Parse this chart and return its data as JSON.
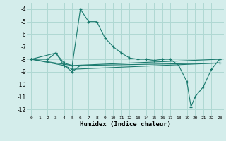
{
  "line1_x": [
    0,
    2,
    3,
    4,
    5,
    6,
    7,
    8,
    9,
    10,
    11,
    12,
    13,
    14,
    15,
    16,
    17,
    18,
    19,
    19.5,
    20,
    21,
    22,
    23
  ],
  "line1_y": [
    -8,
    -8,
    -7.5,
    -8.3,
    -8.5,
    -4.0,
    -5.0,
    -5.0,
    -6.3,
    -7.0,
    -7.5,
    -7.9,
    -8.0,
    -8.0,
    -8.1,
    -8.0,
    -8.0,
    -8.5,
    -9.8,
    -11.8,
    -11.0,
    -10.2,
    -8.8,
    -8.0
  ],
  "line2_x": [
    0,
    3,
    4,
    5,
    6,
    23
  ],
  "line2_y": [
    -8,
    -7.5,
    -8.5,
    -9.0,
    -8.5,
    -8.3
  ],
  "line3_x": [
    0,
    5,
    23
  ],
  "line3_y": [
    -8,
    -8.5,
    -8.0
  ],
  "line4_x": [
    0,
    4,
    5,
    23
  ],
  "line4_y": [
    -8,
    -8.5,
    -8.8,
    -8.3
  ],
  "bg_color": "#d4edeb",
  "grid_color": "#afd8d3",
  "line_color": "#1a7a6e",
  "xlabel": "Humidex (Indice chaleur)",
  "xlim": [
    -0.5,
    23.5
  ],
  "ylim": [
    -12.5,
    -3.5
  ],
  "xticks": [
    0,
    1,
    2,
    3,
    4,
    5,
    6,
    7,
    8,
    9,
    10,
    11,
    12,
    13,
    14,
    15,
    16,
    17,
    18,
    19,
    20,
    21,
    22,
    23
  ],
  "yticks": [
    -12,
    -11,
    -10,
    -9,
    -8,
    -7,
    -6,
    -5,
    -4
  ]
}
